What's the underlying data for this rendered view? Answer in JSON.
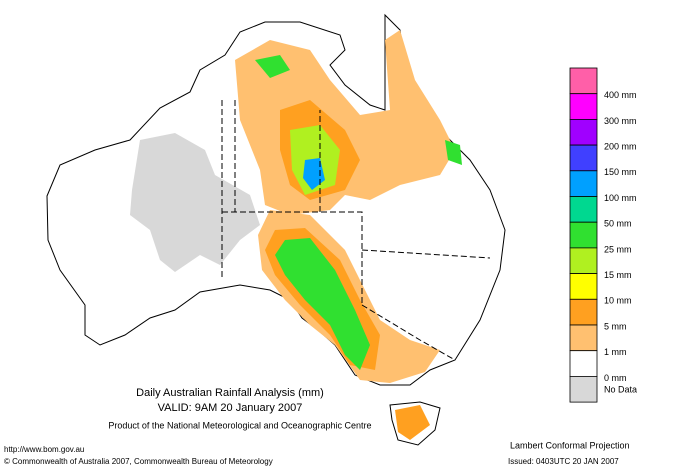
{
  "map": {
    "title": "Daily Australian Rainfall Analysis (mm)",
    "valid": "VALID: 9AM 20 January 2007",
    "product": "Product of the National Meteorological and Oceanographic Centre",
    "url": "http://www.bom.gov.au",
    "copyright": "© Commonwealth of Australia 2007, Commonwealth Bureau of Meteorology",
    "projection": "Lambert Conformal Projection",
    "issued": "Issued: 0403UTC 20 JAN 2007"
  },
  "legend": {
    "colors": [
      "#ff5fa8",
      "#ff00ff",
      "#a000ff",
      "#4040ff",
      "#00a0ff",
      "#00d890",
      "#30e030",
      "#b0f020",
      "#ffff00",
      "#ffa020",
      "#ffc070",
      "#ffffff",
      "#d8d8d8"
    ],
    "labels": [
      "400 mm",
      "300 mm",
      "200 mm",
      "150 mm",
      "100 mm",
      "50 mm",
      "25 mm",
      "15 mm",
      "10 mm",
      "5 mm",
      "1 mm",
      "0 mm",
      "No Data"
    ]
  }
}
